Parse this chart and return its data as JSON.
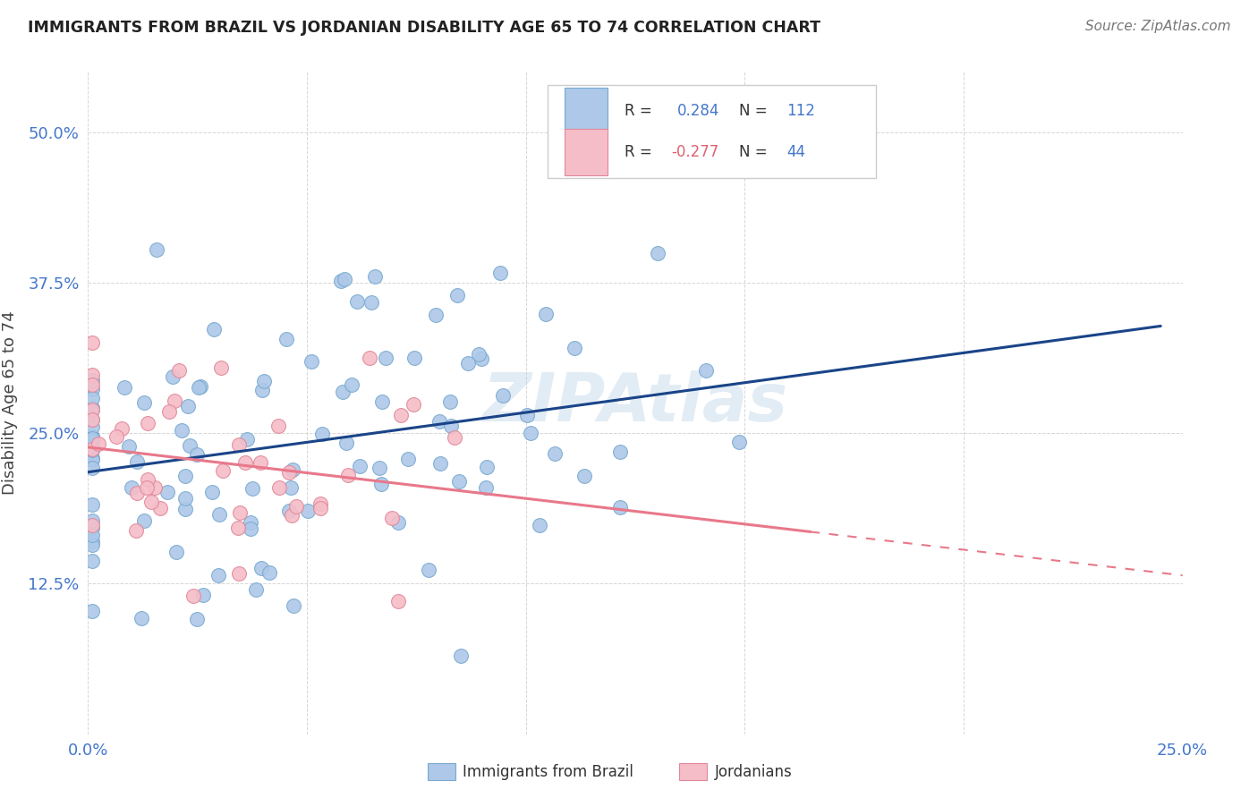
{
  "title": "IMMIGRANTS FROM BRAZIL VS JORDANIAN DISABILITY AGE 65 TO 74 CORRELATION CHART",
  "source": "Source: ZipAtlas.com",
  "ylabel": "Disability Age 65 to 74",
  "xlim": [
    0.0,
    0.25
  ],
  "ylim": [
    0.0,
    0.55
  ],
  "brazil_color": "#adc8e8",
  "brazil_edge": "#7aaad0",
  "jordan_color": "#f5bdc8",
  "jordan_edge": "#e08898",
  "brazil_line_color": "#1a4488",
  "jordan_line_color": "#e8788a",
  "brazil_R": 0.284,
  "brazil_N": 112,
  "jordan_R": -0.277,
  "jordan_N": 44,
  "watermark": "ZIPAtlas",
  "tick_color": "#4477cc",
  "grid_color": "#cccccc"
}
